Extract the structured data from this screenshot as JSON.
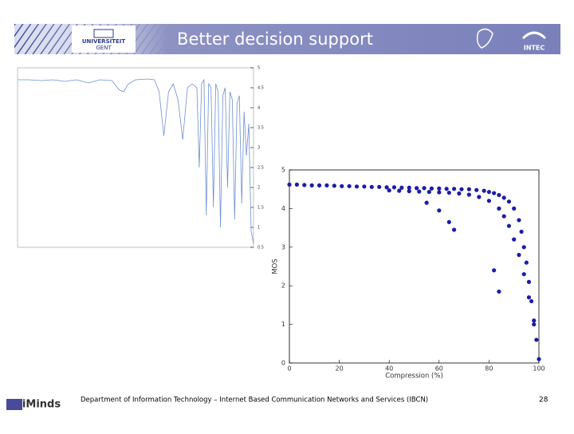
{
  "header": {
    "title": "Better decision support",
    "logo_left": [
      "UNIVERSITEIT",
      "GENT"
    ],
    "logo_right": "INTEC"
  },
  "footer": {
    "text": "Department of Information Technology – Internet Based Communication Networks and Services (IBCN)",
    "page": "28",
    "logo": "iMinds"
  },
  "chart_data": [
    {
      "type": "line",
      "color": "#6d8fd3",
      "xlim": [
        0,
        100
      ],
      "ylim": [
        0.5,
        5
      ],
      "yticks": [
        0.5,
        1,
        1.5,
        2,
        2.5,
        3,
        3.5,
        4,
        4.5,
        5
      ],
      "x": [
        0,
        5,
        10,
        15,
        20,
        25,
        30,
        35,
        40,
        43,
        45,
        47,
        50,
        55,
        58,
        60,
        62,
        64,
        66,
        68,
        70,
        72,
        74,
        76,
        77,
        78,
        79,
        80,
        81,
        82,
        83,
        84,
        85,
        86,
        87,
        88,
        89,
        90,
        91,
        92,
        93,
        94,
        95,
        96,
        97,
        98,
        99,
        100
      ],
      "values": [
        4.7,
        4.7,
        4.68,
        4.7,
        4.66,
        4.7,
        4.62,
        4.7,
        4.68,
        4.45,
        4.4,
        4.6,
        4.7,
        4.72,
        4.7,
        4.4,
        3.3,
        4.4,
        4.6,
        4.2,
        3.2,
        4.5,
        4.6,
        4.5,
        2.5,
        4.6,
        4.7,
        1.3,
        4.6,
        4.5,
        1.5,
        4.6,
        4.4,
        1.0,
        4.3,
        4.5,
        2.0,
        4.4,
        4.2,
        1.2,
        4.1,
        4.3,
        1.6,
        3.9,
        2.8,
        3.6,
        0.9,
        0.6
      ]
    },
    {
      "type": "scatter",
      "color": "#1c1ca6",
      "xlabel": "Compression (%)",
      "ylabel": "MOS",
      "xlim": [
        0,
        100
      ],
      "ylim": [
        0,
        5
      ],
      "xticks": [
        0,
        20,
        40,
        60,
        80,
        100
      ],
      "yticks": [
        0,
        1,
        2,
        3,
        4,
        5
      ],
      "x": [
        0,
        3,
        6,
        9,
        12,
        15,
        18,
        21,
        24,
        27,
        30,
        33,
        36,
        39,
        42,
        45,
        48,
        51,
        54,
        57,
        60,
        63,
        66,
        69,
        72,
        75,
        78,
        80,
        82,
        84,
        86,
        88,
        90,
        92,
        93,
        94,
        95,
        96,
        97,
        98,
        99,
        100,
        40,
        44,
        48,
        52,
        56,
        60,
        64,
        68,
        72,
        76,
        80,
        84,
        86,
        88,
        90,
        92,
        94,
        96,
        98,
        55,
        60,
        64,
        66,
        82,
        84
      ],
      "values": [
        4.62,
        4.62,
        4.61,
        4.6,
        4.6,
        4.6,
        4.59,
        4.58,
        4.58,
        4.57,
        4.57,
        4.56,
        4.56,
        4.55,
        4.55,
        4.54,
        4.54,
        4.53,
        4.53,
        4.52,
        4.52,
        4.51,
        4.51,
        4.5,
        4.5,
        4.48,
        4.46,
        4.43,
        4.4,
        4.35,
        4.28,
        4.18,
        4.0,
        3.7,
        3.4,
        3.0,
        2.6,
        2.1,
        1.6,
        1.1,
        0.6,
        0.1,
        4.47,
        4.46,
        4.45,
        4.44,
        4.43,
        4.42,
        4.41,
        4.39,
        4.36,
        4.3,
        4.2,
        4.0,
        3.8,
        3.55,
        3.2,
        2.8,
        2.3,
        1.7,
        1.0,
        4.15,
        3.95,
        3.65,
        3.45,
        2.4,
        1.85
      ]
    }
  ]
}
